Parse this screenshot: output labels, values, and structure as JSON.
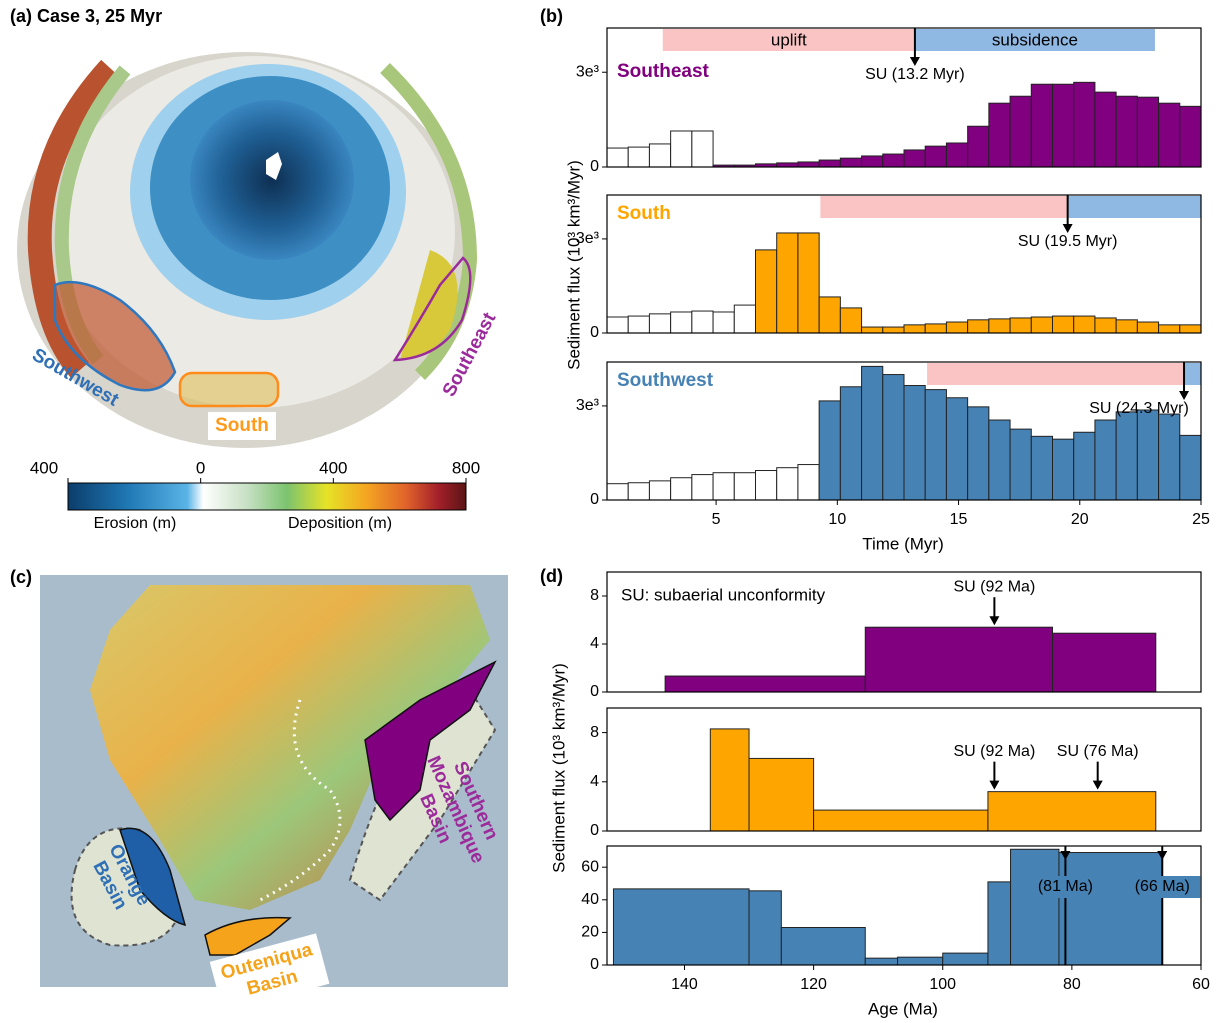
{
  "chart_data": [
    {
      "type": "histogram",
      "title": "Southeast",
      "bins": [
        0.5,
        1.375,
        2.25,
        3.125,
        4,
        4.875,
        5.75,
        6.625,
        7.5,
        8.375,
        9.25,
        10.125,
        11,
        11.875,
        12.75,
        13.625,
        14.5,
        15.375,
        16.25,
        17.125,
        18,
        18.875,
        19.75,
        20.625,
        21.5,
        22.375,
        23.25,
        24.125,
        25
      ],
      "series": [
        {
          "color": "#ffffff",
          "values": [
            0.6,
            0.63,
            0.73,
            1.14,
            1.14,
            null,
            null,
            null,
            null,
            null,
            null,
            null,
            null,
            null,
            null,
            null,
            null,
            null,
            null,
            null,
            null,
            null,
            null,
            null,
            null,
            null,
            null,
            null
          ]
        },
        {
          "color": "#800080",
          "values": [
            null,
            null,
            null,
            null,
            null,
            0.06,
            0.06,
            0.1,
            0.13,
            0.16,
            0.22,
            0.28,
            0.35,
            0.41,
            0.54,
            0.66,
            0.76,
            1.29,
            2.02,
            2.24,
            2.62,
            2.62,
            2.68,
            2.37,
            2.24,
            2.21,
            2.02,
            1.92
          ]
        }
      ],
      "xlim": [
        0.5,
        25
      ],
      "ylim": [
        0,
        4.4
      ],
      "yticks": [
        0,
        {
          "value": 3,
          "label": "3e³"
        }
      ],
      "bands": [
        {
          "label": "uplift",
          "start": 2.8,
          "end": 13.2,
          "color": "#fbc4c4"
        },
        {
          "label": "subsidence",
          "start": 13.2,
          "end": 23.1,
          "color": "#8fb8e3"
        }
      ],
      "annotations": [
        {
          "text": "SU (13.2 Myr)",
          "x": 13.2
        }
      ]
    },
    {
      "type": "histogram",
      "title": "South",
      "bins": [
        0.5,
        1.375,
        2.25,
        3.125,
        4,
        4.875,
        5.75,
        6.625,
        7.5,
        8.375,
        9.25,
        10.125,
        11,
        11.875,
        12.75,
        13.625,
        14.5,
        15.375,
        16.25,
        17.125,
        18,
        18.875,
        19.75,
        20.625,
        21.5,
        22.375,
        23.25,
        24.125,
        25
      ],
      "series": [
        {
          "color": "#ffffff",
          "values": [
            0.51,
            0.54,
            0.61,
            0.67,
            0.7,
            0.67,
            0.89,
            null,
            null,
            null,
            null,
            null,
            null,
            null,
            null,
            null,
            null,
            null,
            null,
            null,
            null,
            null,
            null,
            null,
            null,
            null,
            null,
            null
          ]
        },
        {
          "color": "#ffa500",
          "values": [
            null,
            null,
            null,
            null,
            null,
            null,
            null,
            2.65,
            3.19,
            3.19,
            1.15,
            0.8,
            0.19,
            0.19,
            0.26,
            0.29,
            0.35,
            0.42,
            0.45,
            0.48,
            0.51,
            0.54,
            0.54,
            0.48,
            0.42,
            0.35,
            0.26,
            0.26
          ]
        }
      ],
      "xlim": [
        0.5,
        25
      ],
      "ylim": [
        0,
        4.4
      ],
      "yticks": [
        0,
        {
          "value": 3,
          "label": "3e³"
        }
      ],
      "bands": [
        {
          "start": 9.3,
          "end": 19.5,
          "color": "#fbc4c4"
        },
        {
          "start": 19.5,
          "end": 25,
          "color": "#8fb8e3"
        }
      ],
      "annotations": [
        {
          "text": "SU (19.5 Myr)",
          "x": 19.5
        }
      ]
    },
    {
      "type": "histogram",
      "title": "Southwest",
      "bins": [
        0.5,
        1.375,
        2.25,
        3.125,
        4,
        4.875,
        5.75,
        6.625,
        7.5,
        8.375,
        9.25,
        10.125,
        11,
        11.875,
        12.75,
        13.625,
        14.5,
        15.375,
        16.25,
        17.125,
        18,
        18.875,
        19.75,
        20.625,
        21.5,
        22.375,
        23.25,
        24.125,
        25
      ],
      "series": [
        {
          "color": "#ffffff",
          "values": [
            0.52,
            0.55,
            0.61,
            0.71,
            0.81,
            0.87,
            0.87,
            0.94,
            1.03,
            1.13,
            null,
            null,
            null,
            null,
            null,
            null,
            null,
            null,
            null,
            null,
            null,
            null,
            null,
            null,
            null,
            null,
            null,
            null
          ]
        },
        {
          "color": "#4682b4",
          "values": [
            null,
            null,
            null,
            null,
            null,
            null,
            null,
            null,
            null,
            null,
            3.16,
            3.61,
            4.26,
            4.0,
            3.65,
            3.52,
            3.26,
            2.97,
            2.55,
            2.26,
            2.03,
            1.94,
            2.16,
            2.55,
            2.81,
            2.87,
            2.74,
            2.06
          ]
        }
      ],
      "xlim": [
        0.5,
        25
      ],
      "ylim": [
        0,
        4.4
      ],
      "xticks": [
        5,
        10,
        15,
        20,
        25
      ],
      "yticks": [
        0,
        {
          "value": 3,
          "label": "3e³"
        }
      ],
      "bands": [
        {
          "start": 13.7,
          "end": 24.3,
          "color": "#fbc4c4"
        },
        {
          "start": 24.3,
          "end": 25,
          "color": "#8fb8e3"
        }
      ],
      "annotations": [
        {
          "text": "SU (24.3 Myr)",
          "x": 24.3
        }
      ]
    },
    {
      "type": "histogram",
      "note": "SU: subaerial unconformity",
      "bins": [
        143,
        112,
        83,
        67
      ],
      "series": [
        {
          "color": "#800080",
          "values": [
            1.33,
            5.4,
            4.9
          ]
        }
      ],
      "xlim": [
        152,
        60
      ],
      "ylim": [
        0,
        10
      ],
      "yticks": [
        0,
        4,
        8
      ],
      "annotations": [
        {
          "text": "SU (92 Ma)",
          "x": 92
        }
      ]
    },
    {
      "type": "histogram",
      "bins": [
        136,
        130,
        120,
        93,
        67
      ],
      "series": [
        {
          "color": "#ffa500",
          "values": [
            8.3,
            5.9,
            1.7,
            3.2
          ]
        }
      ],
      "xlim": [
        152,
        60
      ],
      "ylim": [
        0,
        10
      ],
      "yticks": [
        0,
        4,
        8
      ],
      "annotations": [
        {
          "text": "SU (92 Ma)",
          "x": 92
        },
        {
          "text": "SU (76 Ma)",
          "x": 76
        }
      ]
    },
    {
      "type": "histogram",
      "bins": [
        151,
        130,
        125,
        112,
        107,
        100,
        93,
        89.5,
        82,
        66
      ],
      "series": [
        {
          "color": "#4682b4",
          "values": [
            46.7,
            45.5,
            23,
            4.2,
            4.8,
            7.3,
            51,
            71,
            69
          ]
        }
      ],
      "xlim": [
        152,
        60
      ],
      "ylim": [
        0,
        73
      ],
      "xticks": [
        140,
        120,
        100,
        80,
        60
      ],
      "yticks": [
        0,
        20,
        40,
        60
      ],
      "annotations": [
        {
          "text": "(81 Ma)",
          "x": 81
        },
        {
          "text": "(66 Ma)",
          "x": 66
        }
      ]
    }
  ],
  "figure": {
    "panel_a": {
      "title": "(a) Case 3, 25 Myr",
      "regions": [
        "Southwest",
        "South",
        "Southeast"
      ],
      "colorbar": {
        "lim": [
          -400,
          800
        ],
        "ticks": [
          {
            "value": -400,
            "label": "400"
          },
          0,
          400,
          800
        ],
        "labels": [
          "Erosion (m)",
          "Deposition (m)"
        ]
      }
    },
    "panel_b": {
      "label": "(b)",
      "ylabel": "Sediment flux (10³ km³/Myr)",
      "xlabel": "Time (Myr)"
    },
    "panel_c": {
      "label": "(c)",
      "basins": [
        [
          "Orange",
          "Basin"
        ],
        [
          "Outeniqua",
          "Basin"
        ],
        [
          "Southern",
          "Mozambique",
          "Basin"
        ]
      ]
    },
    "panel_d": {
      "label": "(d)",
      "ylabel": "Sediment flux (10³ km³/Myr)",
      "xlabel": "Age (Ma)"
    }
  }
}
